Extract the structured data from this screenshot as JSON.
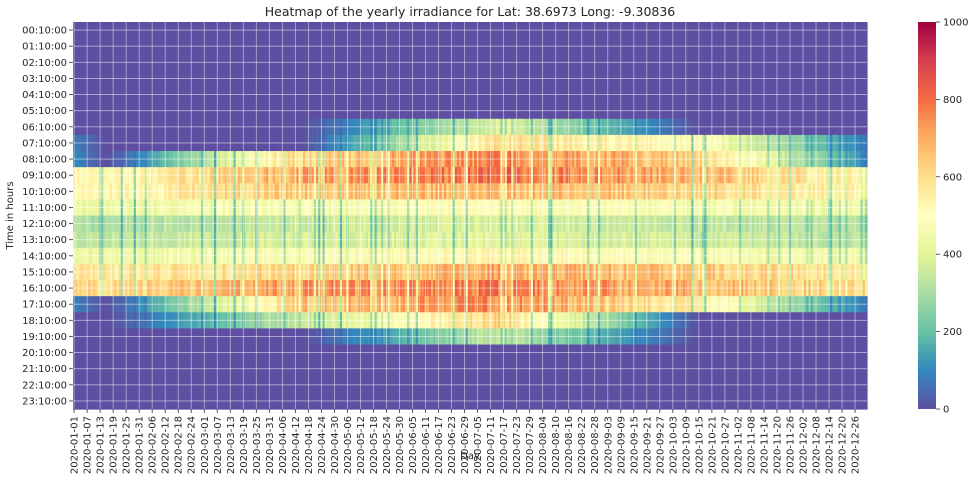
{
  "chart_data": {
    "type": "heatmap",
    "title": "Heatmap of the yearly irradiance for Lat: 38.6973 Long: -9.30836",
    "xlabel": "Day",
    "ylabel": "Time in hours",
    "x_start": "2020-01-01",
    "x_end": "2020-12-31",
    "x_tick_labels": [
      "2020-01-01",
      "2020-01-07",
      "2020-01-13",
      "2020-01-19",
      "2020-01-25",
      "2020-01-31",
      "2020-02-06",
      "2020-02-12",
      "2020-02-18",
      "2020-02-24",
      "2020-03-01",
      "2020-03-07",
      "2020-03-13",
      "2020-03-19",
      "2020-03-25",
      "2020-03-31",
      "2020-04-06",
      "2020-04-12",
      "2020-04-18",
      "2020-04-24",
      "2020-04-30",
      "2020-05-06",
      "2020-05-12",
      "2020-05-18",
      "2020-05-24",
      "2020-05-30",
      "2020-06-05",
      "2020-06-11",
      "2020-06-17",
      "2020-06-23",
      "2020-06-29",
      "2020-07-05",
      "2020-07-11",
      "2020-07-17",
      "2020-07-23",
      "2020-07-29",
      "2020-08-04",
      "2020-08-10",
      "2020-08-16",
      "2020-08-22",
      "2020-08-28",
      "2020-09-03",
      "2020-09-09",
      "2020-09-15",
      "2020-09-21",
      "2020-09-27",
      "2020-10-03",
      "2020-10-09",
      "2020-10-15",
      "2020-10-21",
      "2020-10-27",
      "2020-11-02",
      "2020-11-08",
      "2020-11-14",
      "2020-11-20",
      "2020-11-26",
      "2020-12-02",
      "2020-12-08",
      "2020-12-14",
      "2020-12-20",
      "2020-12-26"
    ],
    "y_tick_labels": [
      "00:10:00",
      "01:10:00",
      "02:10:00",
      "03:10:00",
      "04:10:00",
      "05:10:00",
      "06:10:00",
      "07:10:00",
      "08:10:00",
      "09:10:00",
      "10:10:00",
      "11:10:00",
      "12:10:00",
      "13:10:00",
      "14:10:00",
      "15:10:00",
      "16:10:00",
      "17:10:00",
      "18:10:00",
      "19:10:00",
      "20:10:00",
      "21:10:00",
      "22:10:00",
      "23:10:00"
    ],
    "hourly_profile": {
      "hours": [
        "00:10:00",
        "01:10:00",
        "02:10:00",
        "03:10:00",
        "04:10:00",
        "05:10:00",
        "06:10:00",
        "07:10:00",
        "08:10:00",
        "09:10:00",
        "10:10:00",
        "11:10:00",
        "12:10:00",
        "13:10:00",
        "14:10:00",
        "15:10:00",
        "16:10:00",
        "17:10:00",
        "18:10:00",
        "19:10:00",
        "20:10:00",
        "21:10:00",
        "22:10:00",
        "23:10:00"
      ],
      "winter": [
        0,
        0,
        0,
        0,
        0,
        0,
        0,
        0,
        0,
        500,
        520,
        420,
        300,
        330,
        430,
        560,
        600,
        0,
        0,
        0,
        0,
        0,
        0,
        0
      ],
      "spring": [
        0,
        0,
        0,
        0,
        0,
        0,
        0,
        0,
        620,
        700,
        650,
        480,
        360,
        380,
        490,
        620,
        720,
        650,
        350,
        0,
        0,
        0,
        0,
        0
      ],
      "summer": [
        0,
        0,
        0,
        0,
        0,
        0,
        400,
        600,
        760,
        800,
        680,
        500,
        380,
        400,
        520,
        700,
        780,
        760,
        620,
        350,
        0,
        0,
        0,
        0
      ],
      "autumn": [
        0,
        0,
        0,
        0,
        0,
        0,
        0,
        500,
        640,
        680,
        620,
        470,
        340,
        360,
        470,
        640,
        680,
        540,
        0,
        0,
        0,
        0,
        0,
        0
      ]
    },
    "colorbar": {
      "min": 0,
      "max": 1000,
      "ticks": [
        0,
        200,
        400,
        600,
        800,
        1000
      ],
      "colormap": "Spectral_r"
    },
    "grid": true
  }
}
